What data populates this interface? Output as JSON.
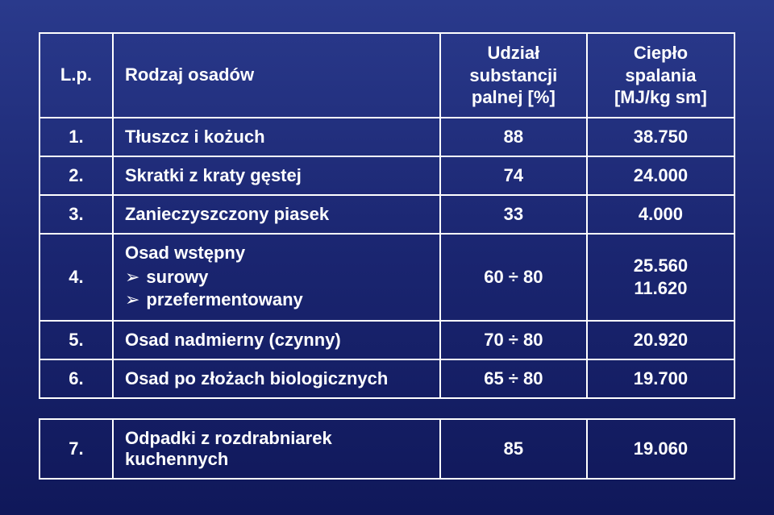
{
  "columns": {
    "lp": "L.p.",
    "rodzaj": "Rodzaj osadów",
    "udzial": "Udział substancji palnej [%]",
    "cieplo": "Ciepło spalania [MJ/kg sm]"
  },
  "rows": [
    {
      "lp": "1.",
      "rodzaj": "Tłuszcz i kożuch",
      "udzial": "88",
      "cieplo": "38.750"
    },
    {
      "lp": "2.",
      "rodzaj": "Skratki z kraty gęstej",
      "udzial": "74",
      "cieplo": "24.000"
    },
    {
      "lp": "3.",
      "rodzaj": "Zanieczyszczony piasek",
      "udzial": "33",
      "cieplo": "4.000"
    },
    {
      "lp": "4.",
      "rodzaj_main": "Osad wstępny",
      "rodzaj_sub1": "surowy",
      "rodzaj_sub2": "przefermentowany",
      "udzial": "60 ÷ 80",
      "cieplo_1": "25.560",
      "cieplo_2": "11.620"
    },
    {
      "lp": "5.",
      "rodzaj": "Osad nadmierny (czynny)",
      "udzial": "70 ÷ 80",
      "cieplo": "20.920"
    },
    {
      "lp": "6.",
      "rodzaj": "Osad po złożach biologicznych",
      "udzial": "65 ÷ 80",
      "cieplo": "19.700"
    }
  ],
  "last_row": {
    "lp": "7.",
    "rodzaj": "Odpadki z rozdrabniarek kuchennych",
    "udzial": "85",
    "cieplo": "19.060"
  },
  "style": {
    "bg_gradient_top": "#2a3a8c",
    "bg_gradient_mid": "#1a2570",
    "bg_gradient_bot": "#10185a",
    "border_color": "#ffffff",
    "text_color": "#ffffff",
    "font_size_pt": 22,
    "font_family": "Arial"
  }
}
